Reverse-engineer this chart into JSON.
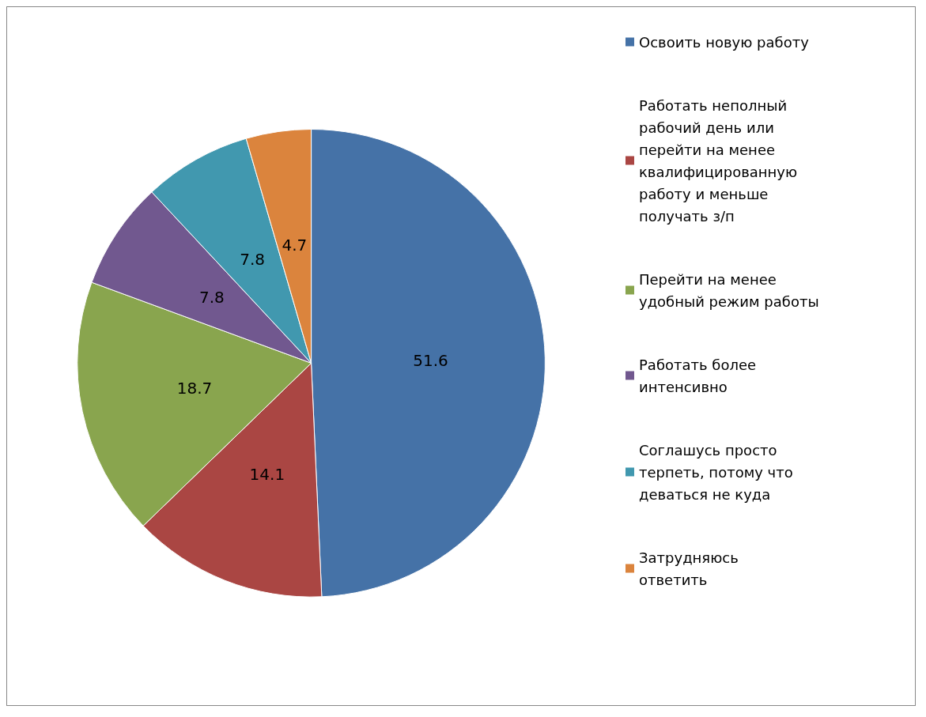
{
  "chart_data": {
    "type": "pie",
    "categories": [
      "Освоить новую работу",
      "Работать неполный рабочий день или перейти на менее квалифицированную работу и меньше получать з/п",
      "Перейти на менее удобный режим работы",
      "Работать более интенсивно",
      "Соглашусь просто терпеть, потому что деваться не куда",
      "Затрудняюсь ответить"
    ],
    "values": [
      51.6,
      14.1,
      18.7,
      7.8,
      7.8,
      4.7
    ],
    "colors": [
      "#4572a7",
      "#aa4643",
      "#89a54e",
      "#71588f",
      "#4198af",
      "#db843d"
    ],
    "data_labels": true,
    "legend": "right"
  }
}
